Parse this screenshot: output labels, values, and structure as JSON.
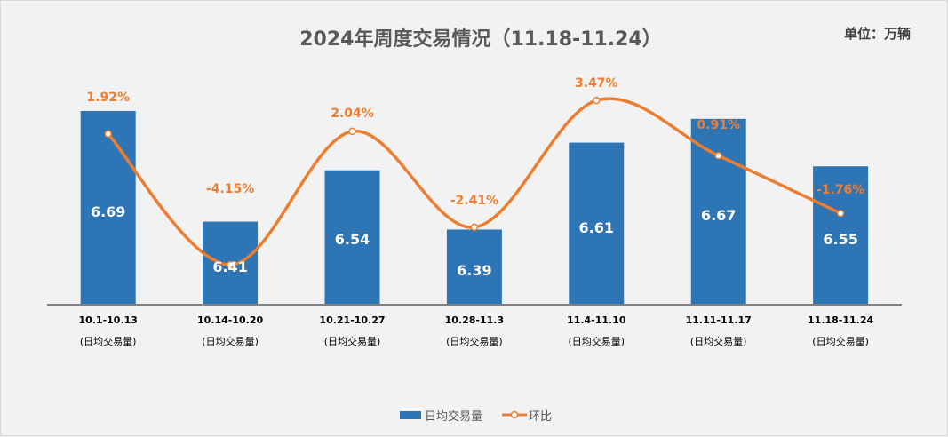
{
  "chart_data": {
    "type": "bar+line",
    "title": "2024年周度交易情况（11.18-11.24）",
    "unit_label": "单位：万辆",
    "categories": [
      "10.1-10.13",
      "10.14-10.20",
      "10.21-10.27",
      "10.28-11.3",
      "11.4-11.10",
      "11.11-11.17",
      "11.18-11.24"
    ],
    "category_sublabel": "(日均交易量)",
    "ylim": [
      6.2,
      6.8
    ],
    "y2lim": [
      -6,
      5
    ],
    "series": [
      {
        "name": "日均交易量",
        "type": "bar",
        "color": "#2e75b6",
        "values": [
          6.69,
          6.41,
          6.54,
          6.39,
          6.61,
          6.67,
          6.55
        ],
        "labels": [
          "6.69",
          "6.41",
          "6.54",
          "6.39",
          "6.61",
          "6.67",
          "6.55"
        ]
      },
      {
        "name": "环比",
        "type": "line",
        "axis": "secondary",
        "color": "#ed7d31",
        "values": [
          1.92,
          -4.15,
          2.04,
          -2.41,
          3.47,
          0.91,
          -1.76
        ],
        "labels": [
          "1.92%",
          "-4.15%",
          "2.04%",
          "-2.41%",
          "3.47%",
          "0.91%",
          "-1.76%"
        ]
      }
    ],
    "legend": "bottom",
    "grid": false
  }
}
